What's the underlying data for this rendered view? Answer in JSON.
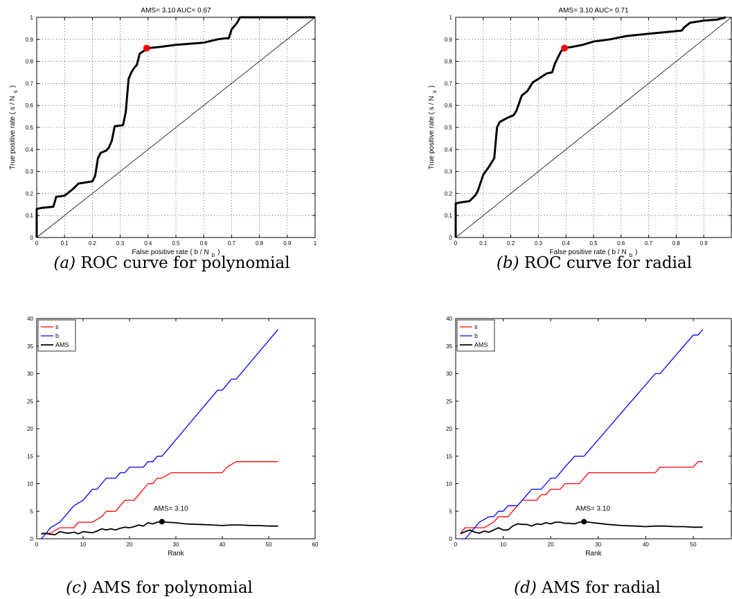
{
  "chart_data": [
    {
      "type": "line",
      "panel": "a",
      "title": "AMS= 3.10   AUC= 0.67",
      "xlabel": "False positive rate ( b / N",
      "xlabel_sub": "b",
      "xlabel_tail": ")",
      "ylabel": "True positive rate ( s / N",
      "ylabel_sub": "s",
      "ylabel_tail": ")",
      "xlim": [
        0,
        1
      ],
      "ylim": [
        0,
        1
      ],
      "xticks": [
        "0",
        "0.1",
        "0.2",
        "0.3",
        "0.4",
        "0.5",
        "0.6",
        "0.7",
        "0.8",
        "0.9",
        "1"
      ],
      "yticks": [
        "0",
        "0.1",
        "0.2",
        "0.3",
        "0.4",
        "0.5",
        "0.6",
        "0.7",
        "0.8",
        "0.9",
        "1"
      ],
      "grid": true,
      "diagonal": true,
      "series": [
        {
          "color": "#000000",
          "points": [
            [
              0,
              0
            ],
            [
              0,
              0.13
            ],
            [
              0.02,
              0.135
            ],
            [
              0.06,
              0.14
            ],
            [
              0.07,
              0.185
            ],
            [
              0.1,
              0.19
            ],
            [
              0.13,
              0.22
            ],
            [
              0.15,
              0.245
            ],
            [
              0.2,
              0.255
            ],
            [
              0.21,
              0.28
            ],
            [
              0.22,
              0.36
            ],
            [
              0.23,
              0.385
            ],
            [
              0.25,
              0.395
            ],
            [
              0.26,
              0.41
            ],
            [
              0.27,
              0.44
            ],
            [
              0.28,
              0.505
            ],
            [
              0.31,
              0.51
            ],
            [
              0.32,
              0.57
            ],
            [
              0.33,
              0.72
            ],
            [
              0.34,
              0.75
            ],
            [
              0.35,
              0.77
            ],
            [
              0.36,
              0.785
            ],
            [
              0.37,
              0.835
            ],
            [
              0.4,
              0.86
            ],
            [
              0.44,
              0.865
            ],
            [
              0.5,
              0.875
            ],
            [
              0.6,
              0.885
            ],
            [
              0.65,
              0.9
            ],
            [
              0.68,
              0.905
            ],
            [
              0.69,
              0.905
            ],
            [
              0.7,
              0.945
            ],
            [
              0.72,
              0.975
            ],
            [
              0.73,
              1
            ],
            [
              1,
              1
            ]
          ]
        }
      ],
      "marker": {
        "x": 0.395,
        "y": 0.86,
        "color": "#ff0000"
      }
    },
    {
      "type": "line",
      "panel": "b",
      "title": "AMS= 3.10   AUC= 0.71",
      "xlabel": "False positive rate ( b / N",
      "xlabel_sub": "b",
      "xlabel_tail": ")",
      "ylabel": "True positive rate ( s / N",
      "ylabel_sub": "s",
      "ylabel_tail": ")",
      "xlim": [
        0,
        1
      ],
      "ylim": [
        0,
        1
      ],
      "xticks": [
        "0",
        "0.1",
        "0.2",
        "0.3",
        "0.4",
        "0.5",
        "0.6",
        "0.7",
        "0.8",
        "0.9"
      ],
      "yticks": [
        "0",
        "0.1",
        "0.2",
        "0.3",
        "0.4",
        "0.5",
        "0.6",
        "0.7",
        "0.8",
        "0.9",
        "1"
      ],
      "grid": true,
      "diagonal": true,
      "series": [
        {
          "color": "#000000",
          "points": [
            [
              0,
              0
            ],
            [
              0,
              0.155
            ],
            [
              0.02,
              0.16
            ],
            [
              0.05,
              0.165
            ],
            [
              0.07,
              0.19
            ],
            [
              0.08,
              0.21
            ],
            [
              0.1,
              0.285
            ],
            [
              0.12,
              0.32
            ],
            [
              0.14,
              0.36
            ],
            [
              0.15,
              0.5
            ],
            [
              0.16,
              0.525
            ],
            [
              0.19,
              0.545
            ],
            [
              0.21,
              0.555
            ],
            [
              0.22,
              0.575
            ],
            [
              0.24,
              0.645
            ],
            [
              0.26,
              0.665
            ],
            [
              0.28,
              0.705
            ],
            [
              0.3,
              0.72
            ],
            [
              0.33,
              0.745
            ],
            [
              0.35,
              0.75
            ],
            [
              0.36,
              0.79
            ],
            [
              0.38,
              0.84
            ],
            [
              0.39,
              0.86
            ],
            [
              0.42,
              0.865
            ],
            [
              0.46,
              0.875
            ],
            [
              0.5,
              0.89
            ],
            [
              0.56,
              0.9
            ],
            [
              0.6,
              0.91
            ],
            [
              0.62,
              0.915
            ],
            [
              0.7,
              0.925
            ],
            [
              0.78,
              0.935
            ],
            [
              0.82,
              0.94
            ],
            [
              0.83,
              0.955
            ],
            [
              0.85,
              0.975
            ],
            [
              0.9,
              0.985
            ],
            [
              0.95,
              0.99
            ],
            [
              0.98,
              1
            ]
          ]
        }
      ],
      "marker": {
        "x": 0.395,
        "y": 0.86,
        "color": "#ff0000"
      }
    },
    {
      "type": "line",
      "panel": "c",
      "title": "",
      "xlabel": "Rank",
      "ylabel": "",
      "xlim": [
        0,
        60
      ],
      "ylim": [
        0,
        40
      ],
      "xticks": [
        "0",
        "10",
        "20",
        "30",
        "40",
        "50",
        "60"
      ],
      "yticks": [
        "0",
        "5",
        "10",
        "15",
        "20",
        "25",
        "30",
        "35",
        "40"
      ],
      "grid": false,
      "legend": "top-left",
      "annotation": {
        "text": "AMS= 3.10",
        "x": 27,
        "y": 3.1
      },
      "series": [
        {
          "name": "s",
          "color": "#ff0000",
          "x": [
            1,
            3,
            5,
            6,
            8,
            9,
            11,
            12,
            14,
            15,
            16,
            17,
            18,
            19,
            20,
            21,
            22,
            23,
            24,
            25,
            26,
            27,
            29,
            30,
            32,
            34,
            36,
            38,
            40,
            41,
            43,
            45,
            47,
            50,
            52
          ],
          "values": [
            1,
            1,
            2,
            2,
            2,
            3,
            3,
            3,
            4,
            5,
            5,
            5,
            6,
            7,
            7,
            7,
            8,
            9,
            10,
            10,
            11,
            11,
            12,
            12,
            12,
            12,
            12,
            12,
            12,
            13,
            14,
            14,
            14,
            14,
            14
          ]
        },
        {
          "name": "b",
          "color": "#0000ff",
          "x": [
            1,
            3,
            5,
            7,
            8,
            10,
            12,
            13,
            14,
            15,
            16,
            17,
            18,
            19,
            20,
            21,
            22,
            23,
            24,
            25,
            26,
            27,
            28,
            30,
            32,
            34,
            36,
            38,
            39,
            40,
            41,
            42,
            43,
            44,
            46,
            48,
            50,
            52
          ],
          "values": [
            0,
            2,
            3,
            5,
            6,
            7,
            9,
            9,
            10,
            11,
            11,
            11,
            12,
            12,
            13,
            13,
            13,
            13,
            14,
            14,
            15,
            15,
            16,
            18,
            20,
            22,
            24,
            26,
            27,
            27,
            28,
            29,
            29,
            30,
            32,
            34,
            36,
            38
          ]
        },
        {
          "name": "AMS",
          "color": "#000000",
          "x": [
            1,
            2,
            3,
            4,
            5,
            6,
            7,
            8,
            9,
            10,
            11,
            12,
            13,
            14,
            15,
            16,
            17,
            18,
            19,
            20,
            21,
            22,
            23,
            24,
            25,
            26,
            27,
            28,
            30,
            32,
            35,
            38,
            40,
            42,
            44,
            46,
            48,
            50,
            52
          ],
          "values": [
            0.9,
            0.95,
            0.8,
            0.75,
            1.3,
            1.1,
            1.0,
            1.2,
            0.9,
            1.3,
            1.2,
            1.1,
            1.4,
            1.8,
            1.6,
            1.8,
            1.6,
            1.9,
            2.1,
            2.0,
            2.2,
            2.5,
            2.3,
            2.9,
            2.7,
            3.0,
            3.1,
            3.0,
            2.9,
            2.7,
            2.6,
            2.5,
            2.4,
            2.5,
            2.5,
            2.4,
            2.4,
            2.3,
            2.3
          ]
        }
      ]
    },
    {
      "type": "line",
      "panel": "d",
      "title": "",
      "xlabel": "Rank",
      "ylabel": "",
      "xlim": [
        0,
        58
      ],
      "ylim": [
        0,
        40
      ],
      "xticks": [
        "0",
        "10",
        "20",
        "30",
        "40",
        "50"
      ],
      "yticks": [
        "0",
        "5",
        "10",
        "15",
        "20",
        "25",
        "30",
        "35",
        "40"
      ],
      "grid": false,
      "legend": "top-left",
      "annotation": {
        "text": "AMS= 3.10",
        "x": 27,
        "y": 3.1
      },
      "series": [
        {
          "name": "s",
          "color": "#ff0000",
          "x": [
            1,
            2,
            4,
            6,
            8,
            9,
            10,
            11,
            12,
            13,
            14,
            15,
            16,
            17,
            18,
            19,
            20,
            21,
            22,
            23,
            24,
            25,
            26,
            27,
            28,
            30,
            32,
            34,
            36,
            38,
            40,
            42,
            43,
            45,
            48,
            50,
            51,
            52
          ],
          "values": [
            1,
            2,
            2,
            2,
            3,
            4,
            4,
            4,
            5,
            6,
            7,
            7,
            7,
            7,
            8,
            8,
            9,
            9,
            9,
            10,
            10,
            10,
            10,
            11,
            12,
            12,
            12,
            12,
            12,
            12,
            12,
            12,
            13,
            13,
            13,
            13,
            14,
            14
          ]
        },
        {
          "name": "b",
          "color": "#0000ff",
          "x": [
            1,
            2,
            3,
            5,
            7,
            8,
            9,
            10,
            11,
            12,
            13,
            14,
            15,
            16,
            17,
            18,
            19,
            20,
            21,
            22,
            23,
            24,
            25,
            26,
            27,
            28,
            30,
            32,
            34,
            36,
            38,
            40,
            42,
            43,
            45,
            47,
            49,
            50,
            51,
            52
          ],
          "values": [
            0,
            0,
            1,
            3,
            4,
            4,
            5,
            5,
            6,
            6,
            6,
            7,
            8,
            9,
            9,
            9,
            10,
            11,
            11,
            12,
            13,
            14,
            15,
            15,
            15,
            16,
            18,
            20,
            22,
            24,
            26,
            28,
            30,
            30,
            32,
            34,
            36,
            37,
            37,
            38
          ]
        },
        {
          "name": "AMS",
          "color": "#000000",
          "x": [
            1,
            2,
            3,
            4,
            5,
            6,
            7,
            8,
            9,
            10,
            11,
            12,
            13,
            14,
            15,
            16,
            17,
            18,
            19,
            20,
            21,
            22,
            23,
            24,
            25,
            26,
            27,
            28,
            30,
            32,
            35,
            38,
            40,
            42,
            44,
            46,
            48,
            50,
            52
          ],
          "values": [
            0.9,
            1.3,
            1.6,
            1.2,
            1.0,
            1.4,
            1.2,
            1.6,
            2.0,
            1.6,
            1.6,
            2.3,
            2.7,
            2.6,
            2.6,
            2.3,
            2.7,
            2.6,
            2.9,
            2.7,
            3.0,
            3.0,
            2.8,
            2.8,
            2.7,
            3.0,
            3.1,
            3.0,
            2.8,
            2.6,
            2.4,
            2.3,
            2.2,
            2.3,
            2.3,
            2.2,
            2.2,
            2.1,
            2.1
          ]
        }
      ]
    }
  ],
  "captions": [
    {
      "letter": "(a)",
      "text": " ROC curve for polynomial"
    },
    {
      "letter": "(b)",
      "text": " ROC curve for radial"
    },
    {
      "letter": "(c)",
      "text": " AMS for polynomial"
    },
    {
      "letter": "(d)",
      "text": " AMS for radial"
    }
  ]
}
